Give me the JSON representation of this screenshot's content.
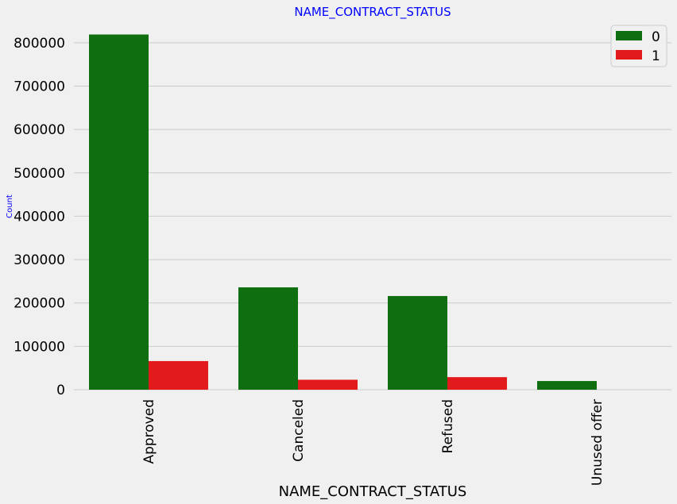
{
  "chart_data": {
    "type": "bar",
    "title": "NAME_CONTRACT_STATUS",
    "xlabel": "NAME_CONTRACT_STATUS",
    "ylabel": "Count",
    "categories": [
      "Approved",
      "Canceled",
      "Refused",
      "Unused offer"
    ],
    "series": [
      {
        "name": "0",
        "color": "#0f6e0f",
        "values": [
          819000,
          236000,
          216000,
          20000
        ]
      },
      {
        "name": "1",
        "color": "#e31a1c",
        "values": [
          66000,
          23000,
          29000,
          0
        ]
      }
    ],
    "ylim": [
      0,
      840000
    ],
    "yticks": [
      "0",
      "100000",
      "200000",
      "300000",
      "400000",
      "500000",
      "600000",
      "700000",
      "800000"
    ],
    "grid": true,
    "legend_position": "top-right",
    "colors": {
      "background": "#f0f0f0",
      "grid": "#cbcbcb",
      "title": "#0000ff",
      "text": "#000000"
    }
  }
}
